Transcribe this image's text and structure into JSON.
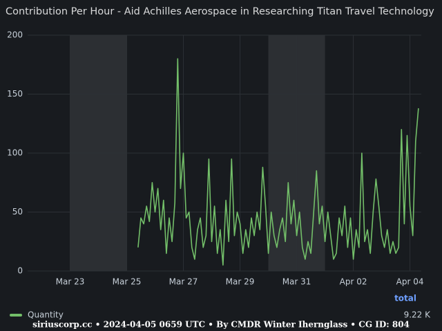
{
  "chart_data": {
    "type": "line",
    "title": "Contribution Per Hour - Aid Achilles Aerospace in Researching Titan Travel Technology",
    "x": [
      25.4,
      25.5,
      25.6,
      25.7,
      25.8,
      25.9,
      26.0,
      26.1,
      26.2,
      26.3,
      26.4,
      26.5,
      26.6,
      26.7,
      26.8,
      26.9,
      27.0,
      27.1,
      27.2,
      27.3,
      27.4,
      27.5,
      27.6,
      27.7,
      27.8,
      27.9,
      28.0,
      28.1,
      28.2,
      28.3,
      28.4,
      28.5,
      28.6,
      28.7,
      28.8,
      28.9,
      29.0,
      29.1,
      29.2,
      29.3,
      29.4,
      29.5,
      29.6,
      29.7,
      29.8,
      29.9,
      30.0,
      30.1,
      30.2,
      30.3,
      30.4,
      30.5,
      30.6,
      30.7,
      30.8,
      30.9,
      31.0,
      31.1,
      31.2,
      31.3,
      31.4,
      31.5,
      31.6,
      31.7,
      31.8,
      31.9,
      32.0,
      32.1,
      32.2,
      32.3,
      32.4,
      32.5,
      32.6,
      32.7,
      32.8,
      32.9,
      33.0,
      33.1,
      33.2,
      33.3,
      33.4,
      33.5,
      33.6,
      33.7,
      33.8,
      33.9,
      34.0,
      34.1,
      34.2,
      34.3,
      34.4,
      34.5,
      34.6,
      34.7,
      34.8,
      34.9,
      35.0,
      35.1,
      35.2,
      35.3
    ],
    "series": [
      {
        "name": "Quantity",
        "color": "#73bf69",
        "total": "9.22 K",
        "values": [
          20,
          45,
          40,
          55,
          42,
          75,
          50,
          70,
          35,
          60,
          15,
          45,
          25,
          58,
          180,
          70,
          100,
          45,
          50,
          20,
          10,
          35,
          45,
          20,
          30,
          95,
          25,
          55,
          15,
          35,
          5,
          60,
          25,
          95,
          30,
          50,
          40,
          15,
          35,
          20,
          45,
          30,
          50,
          35,
          88,
          55,
          15,
          50,
          30,
          20,
          35,
          45,
          25,
          75,
          40,
          60,
          30,
          50,
          20,
          10,
          25,
          15,
          50,
          85,
          40,
          55,
          25,
          50,
          30,
          10,
          15,
          45,
          30,
          55,
          20,
          45,
          10,
          35,
          20,
          100,
          25,
          35,
          15,
          50,
          78,
          55,
          30,
          20,
          35,
          15,
          25,
          15,
          20,
          120,
          40,
          115,
          55,
          30,
          110,
          138
        ]
      }
    ],
    "xlim": [
      21.5,
      35.4
    ],
    "xticks": [
      {
        "value": 23,
        "label": "Mar 23"
      },
      {
        "value": 25,
        "label": "Mar 25"
      },
      {
        "value": 27,
        "label": "Mar 27"
      },
      {
        "value": 29,
        "label": "Mar 29"
      },
      {
        "value": 31,
        "label": "Mar 31"
      },
      {
        "value": 33,
        "label": "Apr 02"
      },
      {
        "value": 35,
        "label": "Apr 04"
      }
    ],
    "ylim": [
      0,
      200
    ],
    "yticks": [
      0,
      50,
      100,
      150,
      200
    ],
    "grid": true,
    "shaded_ranges": [
      [
        23,
        25
      ],
      [
        30,
        32
      ]
    ],
    "legend_column": "total",
    "footer": "siriuscorp.cc • 2024-04-05 0659 UTC • By CMDR Winter Iherngl​ass • CG ID: 804"
  }
}
